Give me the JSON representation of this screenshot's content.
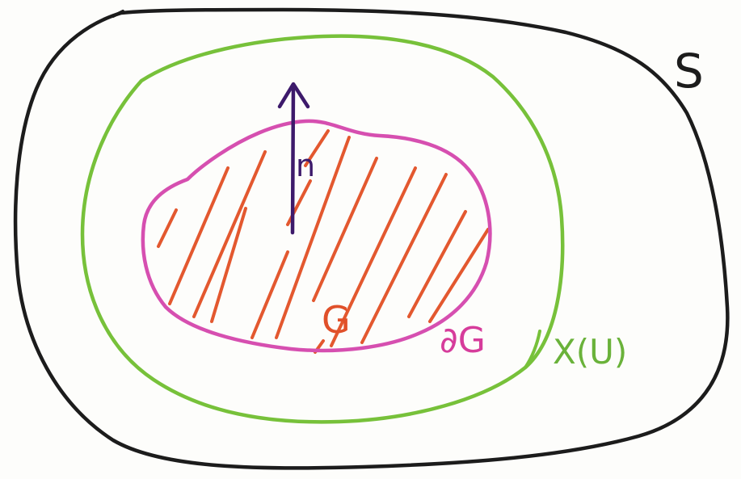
{
  "labels": {
    "surface": "S",
    "region": "G",
    "boundary": "∂G",
    "chart_image": "X(U)",
    "normal": "n"
  },
  "colors": {
    "surface": "#1c1c1c",
    "chart_image": "#77c13a",
    "boundary": "#d64fb0",
    "hatching": "#e3582f",
    "region_label": "#e0502a",
    "boundary_label": "#d63c9b",
    "chart_label": "#6ab23a",
    "normal": "#3d1a6b"
  }
}
